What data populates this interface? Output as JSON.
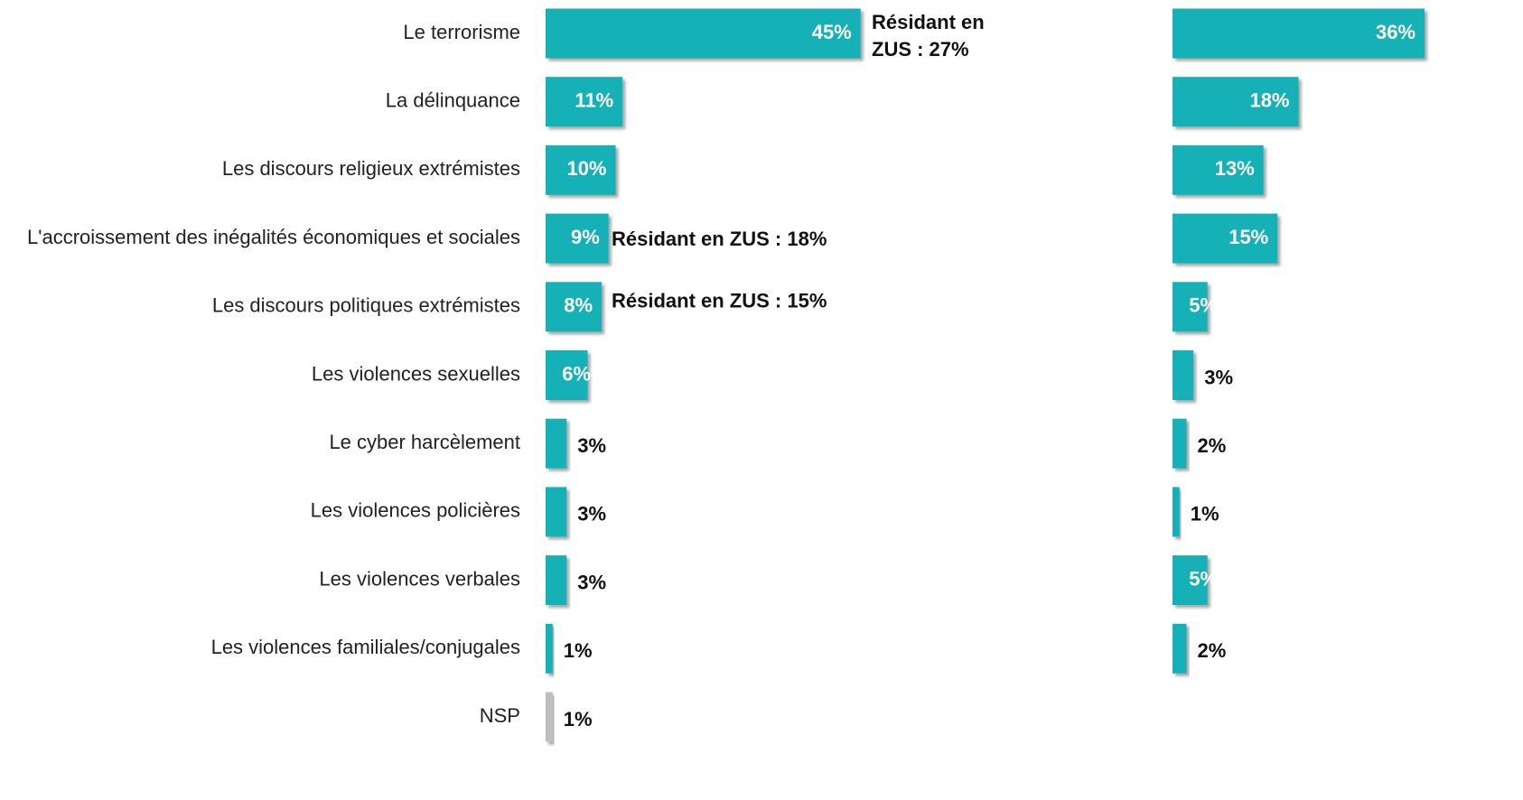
{
  "chart_data": {
    "type": "bar",
    "orientation": "horizontal",
    "categories": [
      "Le terrorisme",
      "La délinquance",
      "Les discours religieux extrémistes",
      "L'accroissement des inégalités économiques et sociales",
      "Les discours politiques extrémistes",
      "Les violences sexuelles",
      "Le cyber harcèlement",
      "Les violences policières",
      "Les violences verbales",
      "Les violences familiales/conjugales",
      "NSP"
    ],
    "series": [
      {
        "colors": [
          "#17b1b7",
          "#17b1b7",
          "#17b1b7",
          "#17b1b7",
          "#17b1b7",
          "#17b1b7",
          "#17b1b7",
          "#17b1b7",
          "#17b1b7",
          "#17b1b7",
          "#bfbfbf"
        ],
        "values": [
          45,
          11,
          10,
          9,
          8,
          6,
          3,
          3,
          3,
          1,
          1
        ],
        "value_labels": [
          "45%",
          "11%",
          "10%",
          "9%",
          "8%",
          "6%",
          "3%",
          "3%",
          "3%",
          "1%",
          "1%"
        ]
      },
      {
        "color": "#17b1b7",
        "values": [
          36,
          18,
          13,
          15,
          5,
          3,
          2,
          1,
          5,
          2,
          null
        ],
        "value_labels": [
          "36%",
          "18%",
          "13%",
          "15%",
          "5%",
          "3%",
          "2%",
          "1%",
          "5%",
          "2%",
          null
        ]
      }
    ],
    "annotations": [
      "Résidant en ZUS : 27%",
      "Résidant en ZUS : 18%",
      "Résidant en ZUS : 15%"
    ]
  }
}
